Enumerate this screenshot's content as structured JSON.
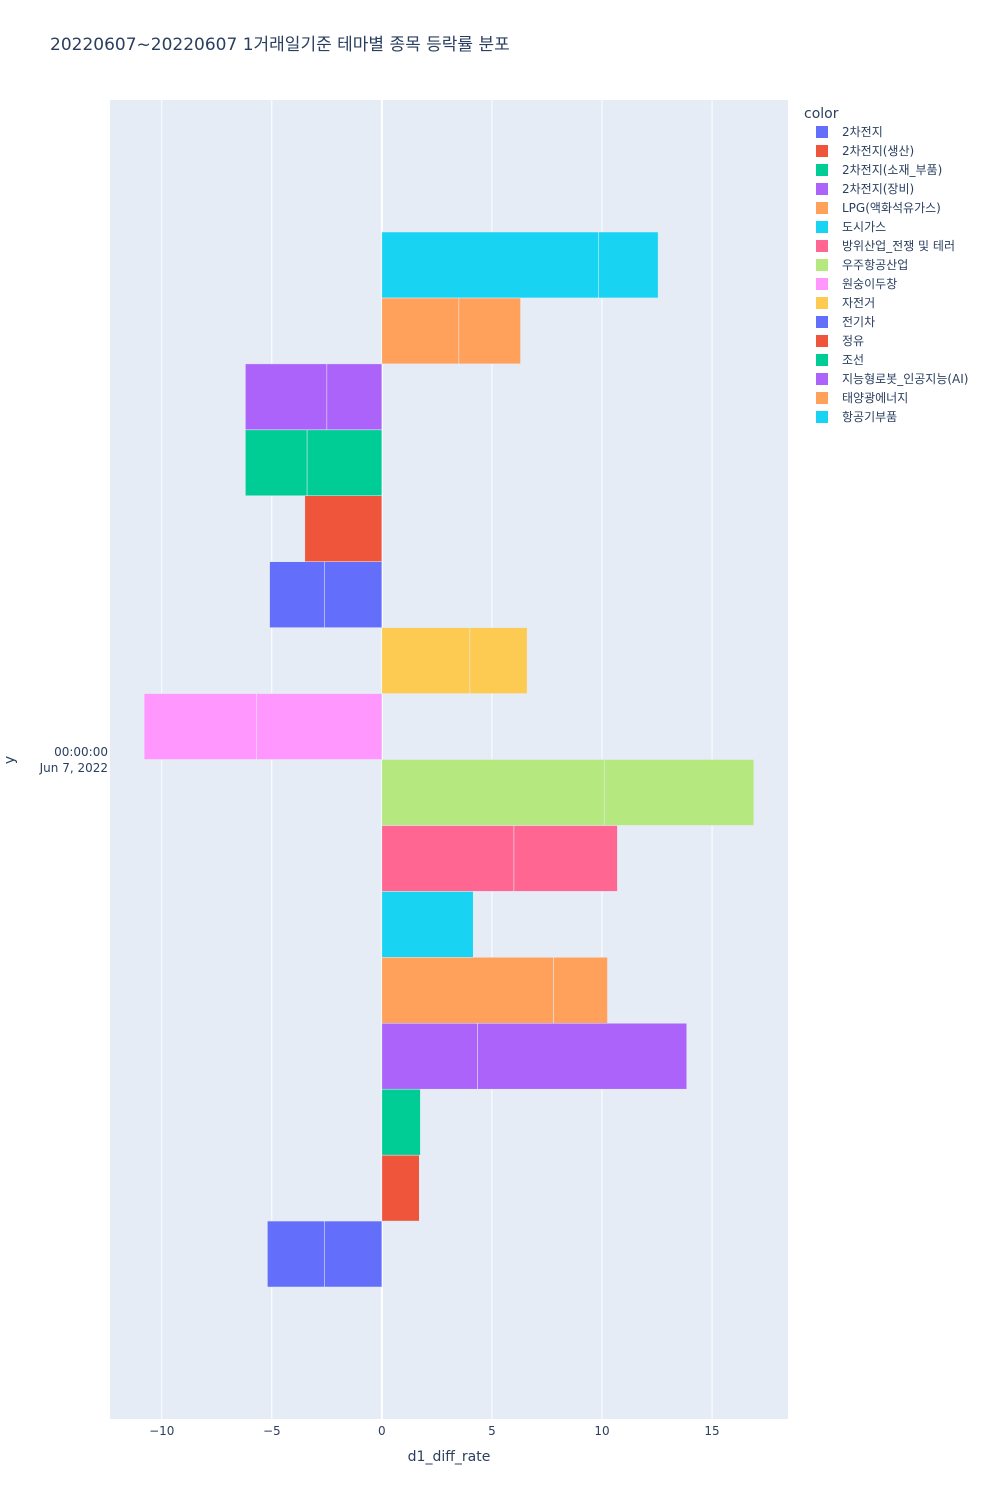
{
  "chart_data": {
    "type": "bar",
    "orientation": "horizontal",
    "barmode": "stacked",
    "title": "20220607~20220607 1거래일기준 테마별 종목 등락률 분포",
    "xlabel": "d1_diff_rate",
    "ylabel": "y",
    "y_tick_label_line1": "00:00:00",
    "y_tick_label_line2": "Jun 7, 2022",
    "xlim": [
      -12.35,
      18.45
    ],
    "xticks": [
      -10,
      -5,
      0,
      5,
      10,
      15
    ],
    "xtick_labels": [
      "−10",
      "−5",
      "0",
      "5",
      "10",
      "15"
    ],
    "grid": true,
    "legend_title": "color",
    "legend_position": "right",
    "series": [
      {
        "name": "2차전지",
        "color": "#636efa",
        "segments": [
          -2.6,
          -2.6
        ]
      },
      {
        "name": "2차전지(생산)",
        "color": "#EF553B",
        "segments": [
          1.7
        ]
      },
      {
        "name": "2차전지(소재_부품)",
        "color": "#00cc96",
        "segments": [
          1.75
        ]
      },
      {
        "name": "2차전지(장비)",
        "color": "#ab63fa",
        "segments": [
          4.35,
          9.5
        ]
      },
      {
        "name": "LPG(액화석유가스)",
        "color": "#FFA15A",
        "segments": [
          7.8,
          2.45
        ]
      },
      {
        "name": "도시가스",
        "color": "#19d3f3",
        "segments": [
          4.15
        ]
      },
      {
        "name": "방위산업_전쟁 및 테러",
        "color": "#FF6692",
        "segments": [
          6.0,
          4.7
        ]
      },
      {
        "name": "우주항공산업",
        "color": "#B6E880",
        "segments": [
          10.1,
          6.8
        ]
      },
      {
        "name": "원숭이두창",
        "color": "#FF97FF",
        "segments": [
          -5.7,
          -5.1
        ]
      },
      {
        "name": "자전거",
        "color": "#FECB52",
        "segments": [
          4.0,
          2.6
        ]
      },
      {
        "name": "전기차",
        "color": "#636efa",
        "segments": [
          -2.6,
          -2.5
        ]
      },
      {
        "name": "정유",
        "color": "#EF553B",
        "segments": [
          -3.5
        ]
      },
      {
        "name": "조선",
        "color": "#00cc96",
        "segments": [
          -3.4,
          -2.8
        ]
      },
      {
        "name": "지능형로봇_인공지능(AI)",
        "color": "#ab63fa",
        "segments": [
          -2.5,
          -3.7
        ]
      },
      {
        "name": "태양광에너지",
        "color": "#FFA15A",
        "segments": [
          3.5,
          2.8
        ]
      },
      {
        "name": "항공기부품",
        "color": "#19d3f3",
        "segments": [
          9.85,
          2.7
        ]
      }
    ]
  }
}
